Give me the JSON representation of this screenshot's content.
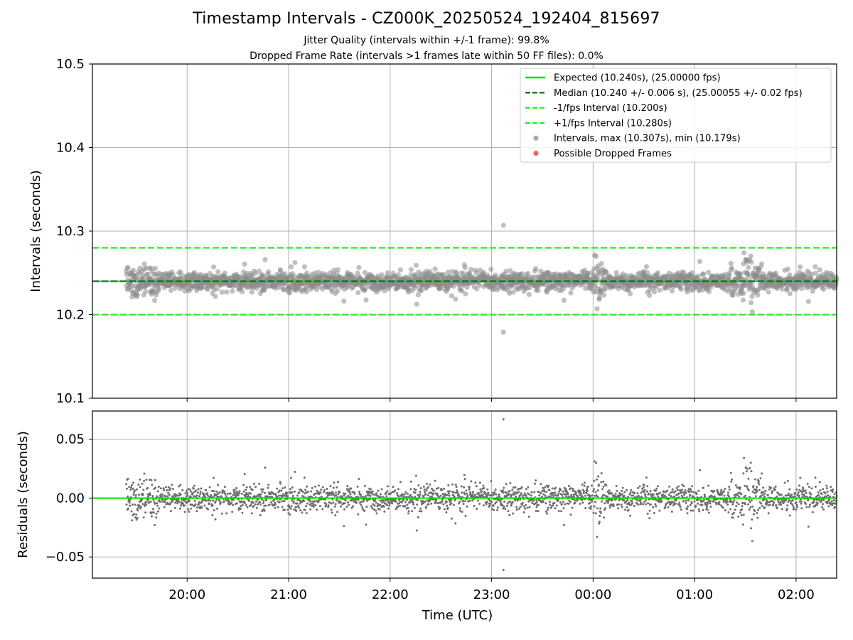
{
  "chart_data": [
    {
      "type": "scatter",
      "title": "Timestamp Intervals - CZ000K_20250524_192404_815697",
      "subtitle_lines": [
        "Jitter Quality (intervals within +/-1 frame): 99.8%",
        "Dropped Frame Rate (intervals >1 frames late within 50 FF files): 0.0%"
      ],
      "xlabel": "",
      "ylabel": "Intervals (seconds)",
      "xlim": [
        "19:04",
        "02:24"
      ],
      "ylim": [
        10.1,
        10.5
      ],
      "yticks": [
        10.1,
        10.2,
        10.3,
        10.4,
        10.5
      ],
      "ytick_labels": [
        "10.1",
        "10.2",
        "10.3",
        "10.4",
        "10.5"
      ],
      "grid": true,
      "legend_placement": "top-right",
      "series": [
        {
          "name": "Expected (10.240s), (25.00000 fps)",
          "kind": "hline",
          "y": 10.24,
          "style": "solid",
          "color": "#00e000"
        },
        {
          "name": "Median (10.240 +/- 0.006 s), (25.00055 +/- 0.02 fps)",
          "kind": "hline",
          "y": 10.24,
          "style": "dashed",
          "color": "#007a00"
        },
        {
          "name": "-1/fps Interval (10.200s)",
          "kind": "hline",
          "y": 10.2,
          "style": "dashed",
          "color": "#22ee22"
        },
        {
          "name": "+1/fps Interval (10.280s)",
          "kind": "hline",
          "y": 10.28,
          "style": "dashed",
          "color": "#22ee22"
        },
        {
          "name": "Intervals, max (10.307s), min (10.179s)",
          "kind": "scatter",
          "color": "#8c8c8c",
          "start": "19:24",
          "end": "02:24",
          "count": 2400,
          "median": 10.24,
          "extremes": [
            {
              "x": "23:07",
              "y": 10.307
            },
            {
              "x": "23:07",
              "y": 10.179
            }
          ]
        },
        {
          "name": "Possible Dropped Frames",
          "kind": "scatter",
          "color": "#f06060",
          "points": []
        }
      ]
    },
    {
      "type": "scatter",
      "title": "",
      "xlabel": "Time (UTC)",
      "ylabel": "Residuals (seconds)",
      "xlim": [
        "19:04",
        "02:24"
      ],
      "ylim": [
        -0.068,
        0.074
      ],
      "yticks": [
        -0.05,
        0.0,
        0.05
      ],
      "ytick_labels": [
        "−0.05",
        "0.00",
        "0.05"
      ],
      "xticks": [
        "20:00",
        "21:00",
        "22:00",
        "23:00",
        "00:00",
        "01:00",
        "02:00"
      ],
      "grid": true,
      "series": [
        {
          "name": "",
          "kind": "hline",
          "y": 0.0,
          "color": "#00e000"
        },
        {
          "name": "",
          "kind": "scatter",
          "color": "#6e6e6e",
          "start": "19:24",
          "end": "02:24",
          "count": 2400,
          "extremes": [
            {
              "x": "23:07",
              "y": 0.067
            },
            {
              "x": "23:07",
              "y": -0.061
            }
          ]
        }
      ]
    }
  ]
}
